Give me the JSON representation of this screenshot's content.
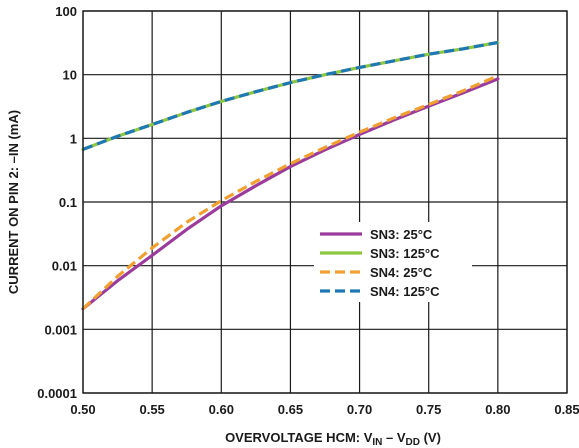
{
  "chart_data": {
    "type": "line",
    "title": "",
    "xlabel_parts": [
      "OVERVOLTAGE HCM: V",
      "IN",
      " – V",
      "DD",
      " (V)"
    ],
    "ylabel": "CURRENT ON PIN 2: –IN (mA)",
    "x_scale": "linear",
    "y_scale": "log",
    "xlim": [
      0.5,
      0.85
    ],
    "ylim": [
      0.0001,
      100
    ],
    "grid": true,
    "legend_position": "center-right",
    "x_ticks": [
      {
        "value": 0.5,
        "label": "0.50"
      },
      {
        "value": 0.55,
        "label": "0.55"
      },
      {
        "value": 0.6,
        "label": "0.60"
      },
      {
        "value": 0.65,
        "label": "0.65"
      },
      {
        "value": 0.7,
        "label": "0.70"
      },
      {
        "value": 0.75,
        "label": "0.75"
      },
      {
        "value": 0.8,
        "label": "0.80"
      },
      {
        "value": 0.85,
        "label": "0.85"
      }
    ],
    "y_ticks": [
      {
        "value": 100,
        "label": "100"
      },
      {
        "value": 10,
        "label": "10"
      },
      {
        "value": 1,
        "label": "1"
      },
      {
        "value": 0.1,
        "label": "0.1"
      },
      {
        "value": 0.01,
        "label": "0.01"
      },
      {
        "value": 0.001,
        "label": "0.001"
      },
      {
        "value": 0.0001,
        "label": "0.0001"
      }
    ],
    "series": [
      {
        "name": "SN3: 25°C",
        "color": "#9b3c9c",
        "dash": "solid",
        "x": [
          0.5,
          0.525,
          0.55,
          0.575,
          0.6,
          0.625,
          0.65,
          0.675,
          0.7,
          0.725,
          0.75,
          0.775,
          0.8
        ],
        "y": [
          0.0021,
          0.0058,
          0.0145,
          0.037,
          0.087,
          0.18,
          0.36,
          0.66,
          1.15,
          1.95,
          3.2,
          5.2,
          8.6
        ]
      },
      {
        "name": "SN3: 125°C",
        "color": "#8dc63f",
        "dash": "solid",
        "x": [
          0.5,
          0.525,
          0.55,
          0.575,
          0.6,
          0.625,
          0.65,
          0.675,
          0.7,
          0.725,
          0.75,
          0.775,
          0.8
        ],
        "y": [
          0.67,
          1.08,
          1.65,
          2.55,
          3.8,
          5.4,
          7.5,
          10.0,
          13.0,
          16.5,
          21.0,
          25.5,
          32.0
        ]
      },
      {
        "name": "SN4: 25°C",
        "color": "#f0a030",
        "dash": "dashed",
        "x": [
          0.5,
          0.525,
          0.55,
          0.575,
          0.6,
          0.625,
          0.65,
          0.675,
          0.7,
          0.725,
          0.75,
          0.775,
          0.8
        ],
        "y": [
          0.0021,
          0.0068,
          0.019,
          0.048,
          0.105,
          0.21,
          0.4,
          0.72,
          1.25,
          2.1,
          3.4,
          5.6,
          9.6
        ]
      },
      {
        "name": "SN4: 125°C",
        "color": "#1f78b4",
        "dash": "dashed",
        "x": [
          0.5,
          0.525,
          0.55,
          0.575,
          0.6,
          0.625,
          0.65,
          0.675,
          0.7,
          0.725,
          0.75,
          0.775,
          0.8
        ],
        "y": [
          0.67,
          1.08,
          1.65,
          2.55,
          3.8,
          5.4,
          7.5,
          10.0,
          13.0,
          16.5,
          21.0,
          25.5,
          32.0
        ]
      }
    ]
  }
}
